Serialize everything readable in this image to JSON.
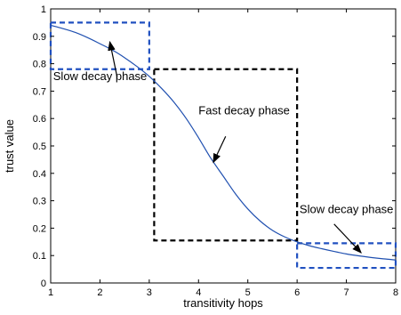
{
  "chart_data": {
    "type": "line",
    "xlabel": "transitivity hops",
    "ylabel": "trust value",
    "xlim": [
      1,
      8
    ],
    "ylim": [
      0,
      1
    ],
    "x_ticks": [
      1,
      2,
      3,
      4,
      5,
      6,
      7,
      8
    ],
    "y_ticks": [
      0,
      0.1,
      0.2,
      0.3,
      0.4,
      0.5,
      0.6,
      0.7,
      0.8,
      0.9,
      1
    ],
    "grid": false,
    "series": [
      {
        "x": [
          1.0,
          1.25,
          1.5,
          1.75,
          2.0,
          2.25,
          2.5,
          2.75,
          3.0,
          3.25,
          3.5,
          3.75,
          4.0,
          4.25,
          4.5,
          4.75,
          5.0,
          5.25,
          5.5,
          5.75,
          6.0,
          6.25,
          6.5,
          6.75,
          7.0,
          7.25,
          7.5,
          7.75,
          8.0
        ],
        "y": [
          0.94,
          0.928,
          0.914,
          0.895,
          0.873,
          0.85,
          0.822,
          0.79,
          0.754,
          0.71,
          0.66,
          0.6,
          0.53,
          0.455,
          0.39,
          0.325,
          0.27,
          0.226,
          0.192,
          0.168,
          0.15,
          0.136,
          0.125,
          0.115,
          0.106,
          0.099,
          0.093,
          0.088,
          0.084
        ],
        "color": "#2050b0"
      }
    ],
    "regions": [
      {
        "x0": 1,
        "x1": 3,
        "y0": 0.78,
        "y1": 0.95,
        "color": "#2050c0",
        "style": "dashed"
      },
      {
        "x0": 3.1,
        "x1": 6.0,
        "y0": 0.155,
        "y1": 0.78,
        "color": "#000000",
        "style": "dashed"
      },
      {
        "x0": 6.0,
        "x1": 8,
        "y0": 0.055,
        "y1": 0.145,
        "color": "#2050c0",
        "style": "dashed"
      }
    ],
    "annotations": [
      {
        "text": "Slow decay phase",
        "text_x": 1.05,
        "text_y": 0.74,
        "arrow_from_x": 2.35,
        "arrow_from_y": 0.75,
        "arrow_to_x": 2.2,
        "arrow_to_y": 0.88
      },
      {
        "text": "Fast decay phase",
        "text_x": 4.0,
        "text_y": 0.615,
        "arrow_from_x": 4.55,
        "arrow_from_y": 0.535,
        "arrow_to_x": 4.3,
        "arrow_to_y": 0.44
      },
      {
        "text": "Slow decay phase",
        "text_x": 6.05,
        "text_y": 0.255,
        "arrow_from_x": 6.75,
        "arrow_from_y": 0.215,
        "arrow_to_x": 7.3,
        "arrow_to_y": 0.11
      }
    ]
  }
}
